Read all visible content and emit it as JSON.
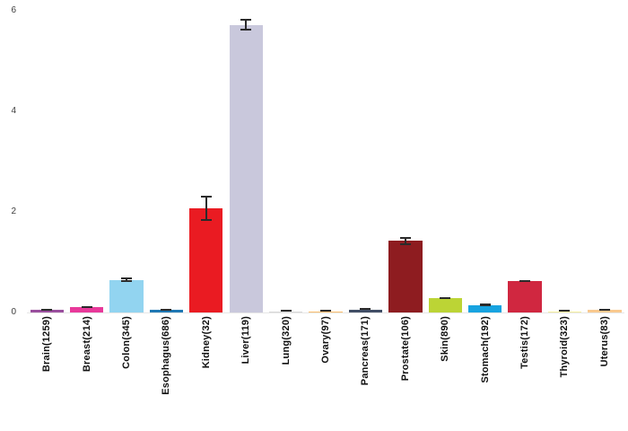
{
  "chart_data": {
    "type": "bar",
    "title": "",
    "xlabel": "",
    "ylabel": "",
    "ylim": [
      0,
      6
    ],
    "yticks": [
      0,
      2,
      4,
      6
    ],
    "grid": false,
    "legend": "none",
    "categories": [
      "Brain(1259)",
      "Breast(214)",
      "Colon(345)",
      "Esophagus(686)",
      "Kidney(32)",
      "Liver(119)",
      "Lung(320)",
      "Ovary(97)",
      "Pancreas(171)",
      "Prostate(106)",
      "Skin(890)",
      "Stomach(192)",
      "Testis(172)",
      "Thyroid(323)",
      "Uterus(83)"
    ],
    "values": [
      0.06,
      0.11,
      0.65,
      0.05,
      2.07,
      5.72,
      0.02,
      0.02,
      0.06,
      1.42,
      0.29,
      0.15,
      0.63,
      0.02,
      0.05
    ],
    "errors": [
      0.02,
      0.02,
      0.04,
      0.01,
      0.25,
      0.12,
      0.01,
      0.005,
      0.015,
      0.08,
      0.02,
      0.03,
      0.02,
      0.005,
      0.01
    ],
    "colors": [
      "#9a4f9e",
      "#e8399a",
      "#92d4f0",
      "#1f78b4",
      "#ea1b22",
      "#c9c8dc",
      "#d8d8d8",
      "#fdbf6f",
      "#414e66",
      "#8e1c20",
      "#bcd435",
      "#17a3e0",
      "#d02740",
      "#f4ef9f",
      "#f9c98f"
    ],
    "error_bar_color": "#2b2b2b"
  },
  "colors": {
    "background": "#ffffff",
    "tick_text": "#3d3d3d",
    "label_text": "#111111",
    "baseline": "#e6e6e6"
  }
}
